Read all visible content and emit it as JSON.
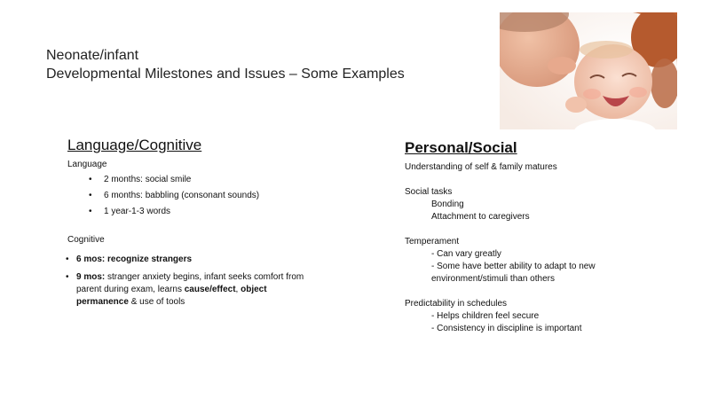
{
  "slide": {
    "title_line1": "Neonate/infant",
    "title_line2": "Developmental Milestones and Issues – Some Examples"
  },
  "photo": {
    "icon": "parent-kissing-baby-photo"
  },
  "left": {
    "heading": "Language/Cognitive",
    "language_label": "Language",
    "language_items": [
      "2 months: social smile",
      "6 months: babbling (consonant sounds)",
      "1 year-1-3 words"
    ],
    "cognitive_label": "Cognitive",
    "cog1_bold": "6 mos: recognize strangers",
    "cog2_bold1": "9 mos:",
    "cog2_text1": " stranger anxiety begins, infant seeks comfort from",
    "cog2_text2": "parent during exam, learns ",
    "cog2_bold2": "cause/effect",
    "cog2_text3": ", ",
    "cog2_bold3": "object",
    "cog2_bold4": "permanence",
    "cog2_text4": " & use of tools"
  },
  "right": {
    "heading": "Personal/Social",
    "line1": "Understanding of self & family matures",
    "social_tasks_label": "Social tasks",
    "social_tasks": [
      "Bonding",
      "Attachment to caregivers"
    ],
    "temperament_label": "Temperament",
    "temperament": [
      "- Can vary greatly",
      "- Some have better ability to adapt to new",
      "environment/stimuli than others"
    ],
    "predictability_label": "Predictability in schedules",
    "predictability": [
      "- Helps children feel secure",
      "- Consistency in discipline is important"
    ]
  },
  "colors": {
    "text": "#111111",
    "photo_bg": "#fbf5f1",
    "skin": "#f2c7b2",
    "hair": "#b55a2e"
  }
}
